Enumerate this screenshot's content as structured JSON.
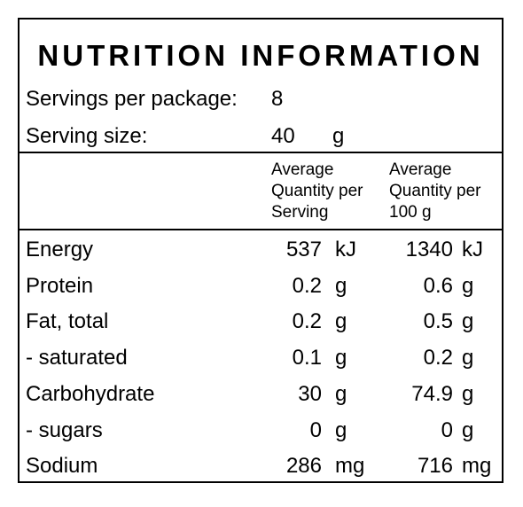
{
  "title": "NUTRITION INFORMATION",
  "servings_per_package": {
    "label": "Servings per package:",
    "value": "8"
  },
  "serving_size": {
    "label": "Serving size:",
    "value": "40",
    "unit": "g"
  },
  "header": {
    "per_serving": [
      "Average",
      "Quantity per",
      "Serving"
    ],
    "per_100g": [
      "Average",
      "Quantity per",
      "100 g"
    ]
  },
  "rows": [
    {
      "name": "Energy",
      "serving": "537",
      "serving_unit": "kJ",
      "per100": "1340",
      "per100_unit": "kJ"
    },
    {
      "name": "Protein",
      "serving": "0.2",
      "serving_unit": "g",
      "per100": "0.6",
      "per100_unit": "g"
    },
    {
      "name": "Fat, total",
      "serving": "0.2",
      "serving_unit": "g",
      "per100": "0.5",
      "per100_unit": "g"
    },
    {
      "name": "- saturated",
      "serving": "0.1",
      "serving_unit": "g",
      "per100": "0.2",
      "per100_unit": "g"
    },
    {
      "name": "Carbohydrate",
      "serving": "30",
      "serving_unit": "g",
      "per100": "74.9",
      "per100_unit": "g"
    },
    {
      "name": "- sugars",
      "serving": "0",
      "serving_unit": "g",
      "per100": "0",
      "per100_unit": "g"
    },
    {
      "name": "Sodium",
      "serving": "286",
      "serving_unit": "mg",
      "per100": "716",
      "per100_unit": "mg"
    }
  ]
}
